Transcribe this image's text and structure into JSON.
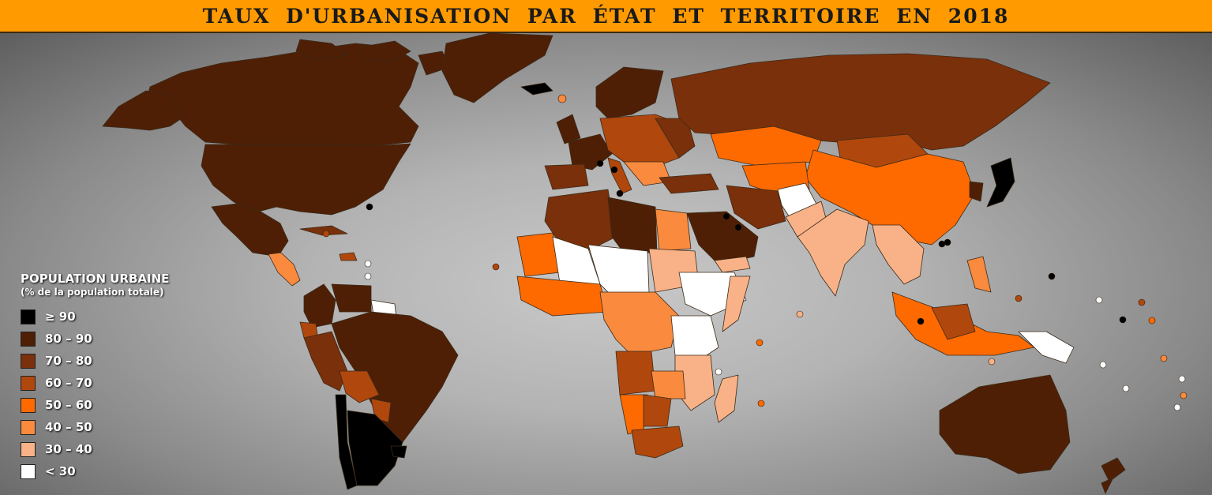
{
  "title": "TAUX D'URBANISATION PAR ÉTAT ET TERRITOIRE EN 2018",
  "legend": {
    "title": "POPULATION URBAINE",
    "subtitle": "(% de la population totale)",
    "items": [
      {
        "label": "≥ 90",
        "color": "#000000"
      },
      {
        "label": "80 – 90",
        "color": "#4e1f05"
      },
      {
        "label": "70 – 80",
        "color": "#7a300a"
      },
      {
        "label": "60 – 70",
        "color": "#b0470d"
      },
      {
        "label": "50 – 60",
        "color": "#ff6a00"
      },
      {
        "label": "40 – 50",
        "color": "#f98a3e"
      },
      {
        "label": "30 – 40",
        "color": "#f9b287"
      },
      {
        "label": "< 30",
        "color": "#ffffff"
      }
    ]
  },
  "colors": {
    "title_bar": "#ff9a00",
    "background": "#9a9a9a",
    "borders": "#3a2a1a"
  }
}
